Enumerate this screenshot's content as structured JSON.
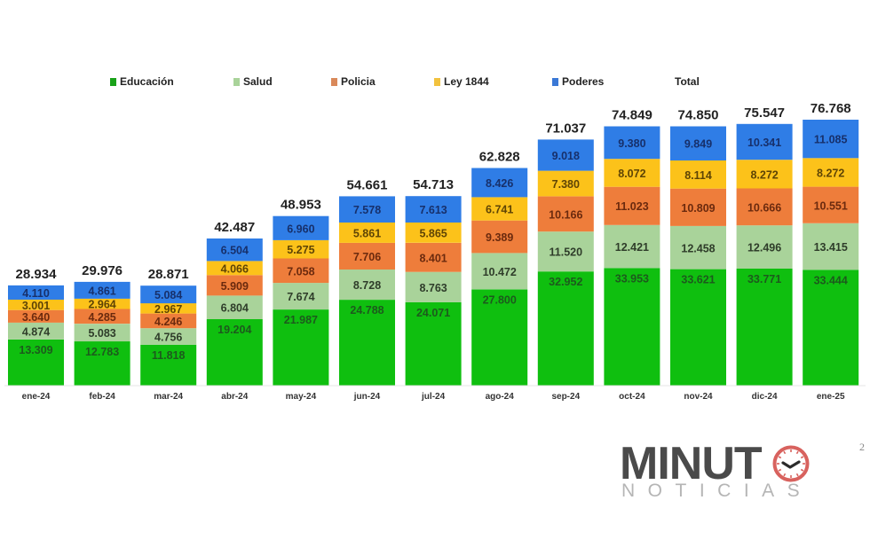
{
  "chart_data": {
    "type": "bar",
    "stacked": true,
    "title": "",
    "xlabel": "",
    "ylabel": "",
    "grid": false,
    "legend_position": "top",
    "categories": [
      "ene-24",
      "feb-24",
      "mar-24",
      "abr-24",
      "may-24",
      "jun-24",
      "jul-24",
      "ago-24",
      "sep-24",
      "oct-24",
      "nov-24",
      "dic-24",
      "ene-25"
    ],
    "series": [
      {
        "name": "Educación",
        "color": "#0fbf0f",
        "label_color": "#1d5a1d",
        "values": [
          13309,
          12783,
          11818,
          19204,
          21987,
          24788,
          24071,
          27800,
          32952,
          33953,
          33621,
          33771,
          33444
        ],
        "labels": [
          "13.309",
          "12.783",
          "11.818",
          "19.204",
          "21.987",
          "24.788",
          "24.071",
          "27.800",
          "32.952",
          "33.953",
          "33.621",
          "33.771",
          "33.444"
        ]
      },
      {
        "name": "Salud",
        "color": "#a9d39a",
        "label_color": "#2f3d2a",
        "values": [
          4874,
          5083,
          4756,
          6804,
          7674,
          8728,
          8763,
          10472,
          11520,
          12421,
          12458,
          12496,
          13415
        ],
        "labels": [
          "4.874",
          "5.083",
          "4.756",
          "6.804",
          "7.674",
          "8.728",
          "8.763",
          "10.472",
          "11.520",
          "12.421",
          "12.458",
          "12.496",
          "13.415"
        ]
      },
      {
        "name": "Policia",
        "color": "#ee7d3b",
        "label_color": "#6b2a0e",
        "values": [
          3640,
          4285,
          4246,
          5909,
          7058,
          7706,
          8401,
          9389,
          10166,
          11023,
          10809,
          10666,
          10551
        ],
        "labels": [
          "3.640",
          "4.285",
          "4.246",
          "5.909",
          "7.058",
          "7.706",
          "8.401",
          "9.389",
          "10.166",
          "11.023",
          "10.809",
          "10.666",
          "10.551"
        ]
      },
      {
        "name": "Ley 1844",
        "color": "#fcc21a",
        "label_color": "#5e4405",
        "values": [
          3001,
          2964,
          2967,
          4066,
          5275,
          5861,
          5865,
          6741,
          7380,
          8072,
          8114,
          8272,
          8272
        ],
        "labels": [
          "3.001",
          "2.964",
          "2.967",
          "4.066",
          "5.275",
          "5.861",
          "5.865",
          "6.741",
          "7.380",
          "8.072",
          "8.114",
          "8.272",
          "8.272"
        ]
      },
      {
        "name": "Poderes",
        "color": "#2f7de6",
        "label_color": "#17306b",
        "values": [
          4110,
          4861,
          5084,
          6504,
          6960,
          7578,
          7613,
          8426,
          9018,
          9380,
          9849,
          10341,
          11085
        ],
        "labels": [
          "4.110",
          "4.861",
          "5.084",
          "6.504",
          "6.960",
          "7.578",
          "7.613",
          "8.426",
          "9.018",
          "9.380",
          "9.849",
          "10.341",
          "11.085"
        ]
      }
    ],
    "totals": {
      "name": "Total",
      "values": [
        28934,
        29976,
        28871,
        42487,
        48953,
        54661,
        54713,
        62828,
        71037,
        74849,
        74850,
        75547,
        76768
      ],
      "labels": [
        "28.934",
        "29.976",
        "28.871",
        "42.487",
        "48.953",
        "54.661",
        "54.713",
        "62.828",
        "71.037",
        "74.849",
        "74.850",
        "75.547",
        "76.768"
      ]
    },
    "ylim": [
      0,
      80000
    ]
  },
  "legend": {
    "items": [
      {
        "label": "Educación",
        "color": "#1aa21a"
      },
      {
        "label": "Salud",
        "color": "#a9d39a"
      },
      {
        "label": "Policia",
        "color": "#d9895a"
      },
      {
        "label": "Ley 1844",
        "color": "#f2c23e"
      },
      {
        "label": "Poderes",
        "color": "#3a78d6"
      },
      {
        "label": "Total",
        "color": null
      }
    ]
  },
  "branding": {
    "logo_main": "MINUT",
    "logo_sub": "NOTICIAS",
    "clock_color": "#d8625e"
  },
  "page_number": "2"
}
